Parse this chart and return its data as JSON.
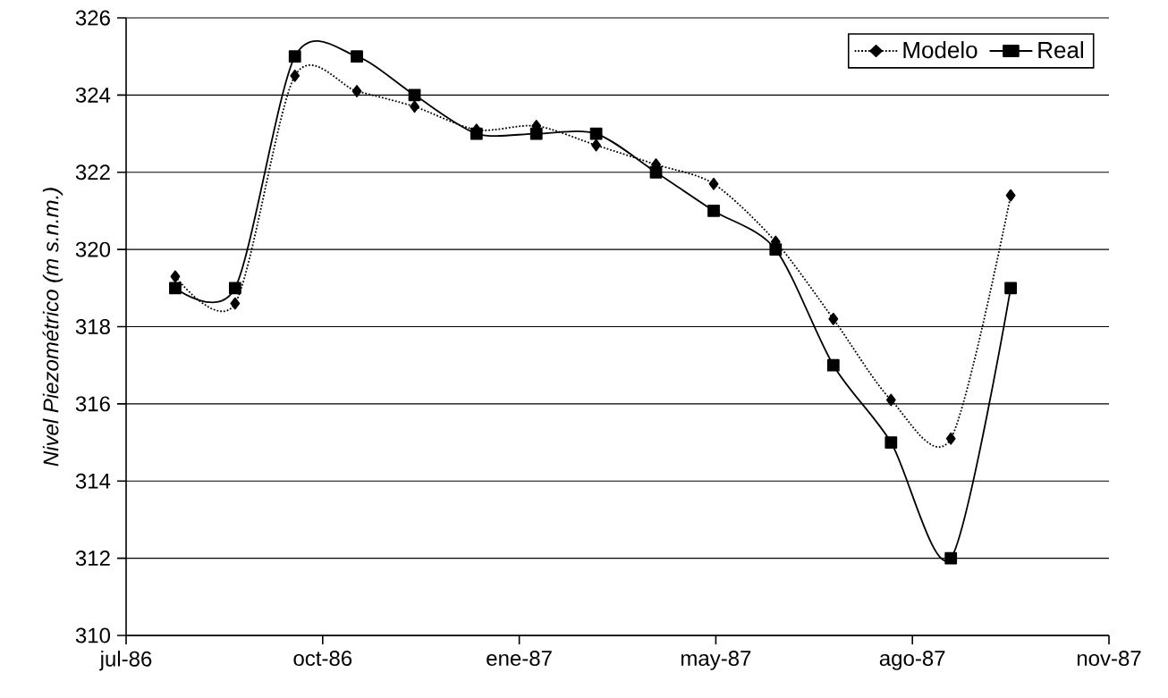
{
  "chart_data": {
    "type": "line",
    "ylabel": "Nivel Piezométrico (m s.n.m.)",
    "x": [
      "1986-08-23",
      "1986-09-20",
      "1986-10-18",
      "1986-11-16",
      "1986-12-13",
      "1987-01-11",
      "1987-02-08",
      "1987-03-08",
      "1987-04-05",
      "1987-05-02",
      "1987-05-31",
      "1987-06-27",
      "1987-07-24",
      "1987-08-21",
      "1987-09-18"
    ],
    "series": [
      {
        "name": "Modelo",
        "color": "#000000",
        "marker": "diamond",
        "line_style": "dotted",
        "values": [
          319.3,
          318.6,
          324.5,
          324.1,
          323.7,
          323.1,
          323.2,
          322.7,
          322.2,
          321.7,
          320.2,
          318.2,
          316.1,
          315.1,
          321.4
        ]
      },
      {
        "name": "Real",
        "color": "#000000",
        "marker": "square",
        "line_style": "solid",
        "values": [
          319,
          319,
          325,
          325,
          324,
          323,
          323,
          323,
          322,
          321,
          320,
          317,
          315,
          312,
          319
        ]
      }
    ],
    "xlim": [
      "1986-07-31",
      "1987-11-03"
    ],
    "xticks": [
      {
        "value": "1986-07-31",
        "label": "jul-86"
      },
      {
        "value": "1986-10-31",
        "label": "oct-86"
      },
      {
        "value": "1987-01-31",
        "label": "ene-87"
      },
      {
        "value": "1987-05-03",
        "label": "may-87"
      },
      {
        "value": "1987-08-03",
        "label": "ago-87"
      },
      {
        "value": "1987-11-03",
        "label": "nov-87"
      }
    ],
    "ylim": [
      310,
      326
    ],
    "yticks": [
      310,
      312,
      314,
      316,
      318,
      320,
      322,
      324,
      326
    ],
    "grid": "y",
    "legend": "top right"
  }
}
